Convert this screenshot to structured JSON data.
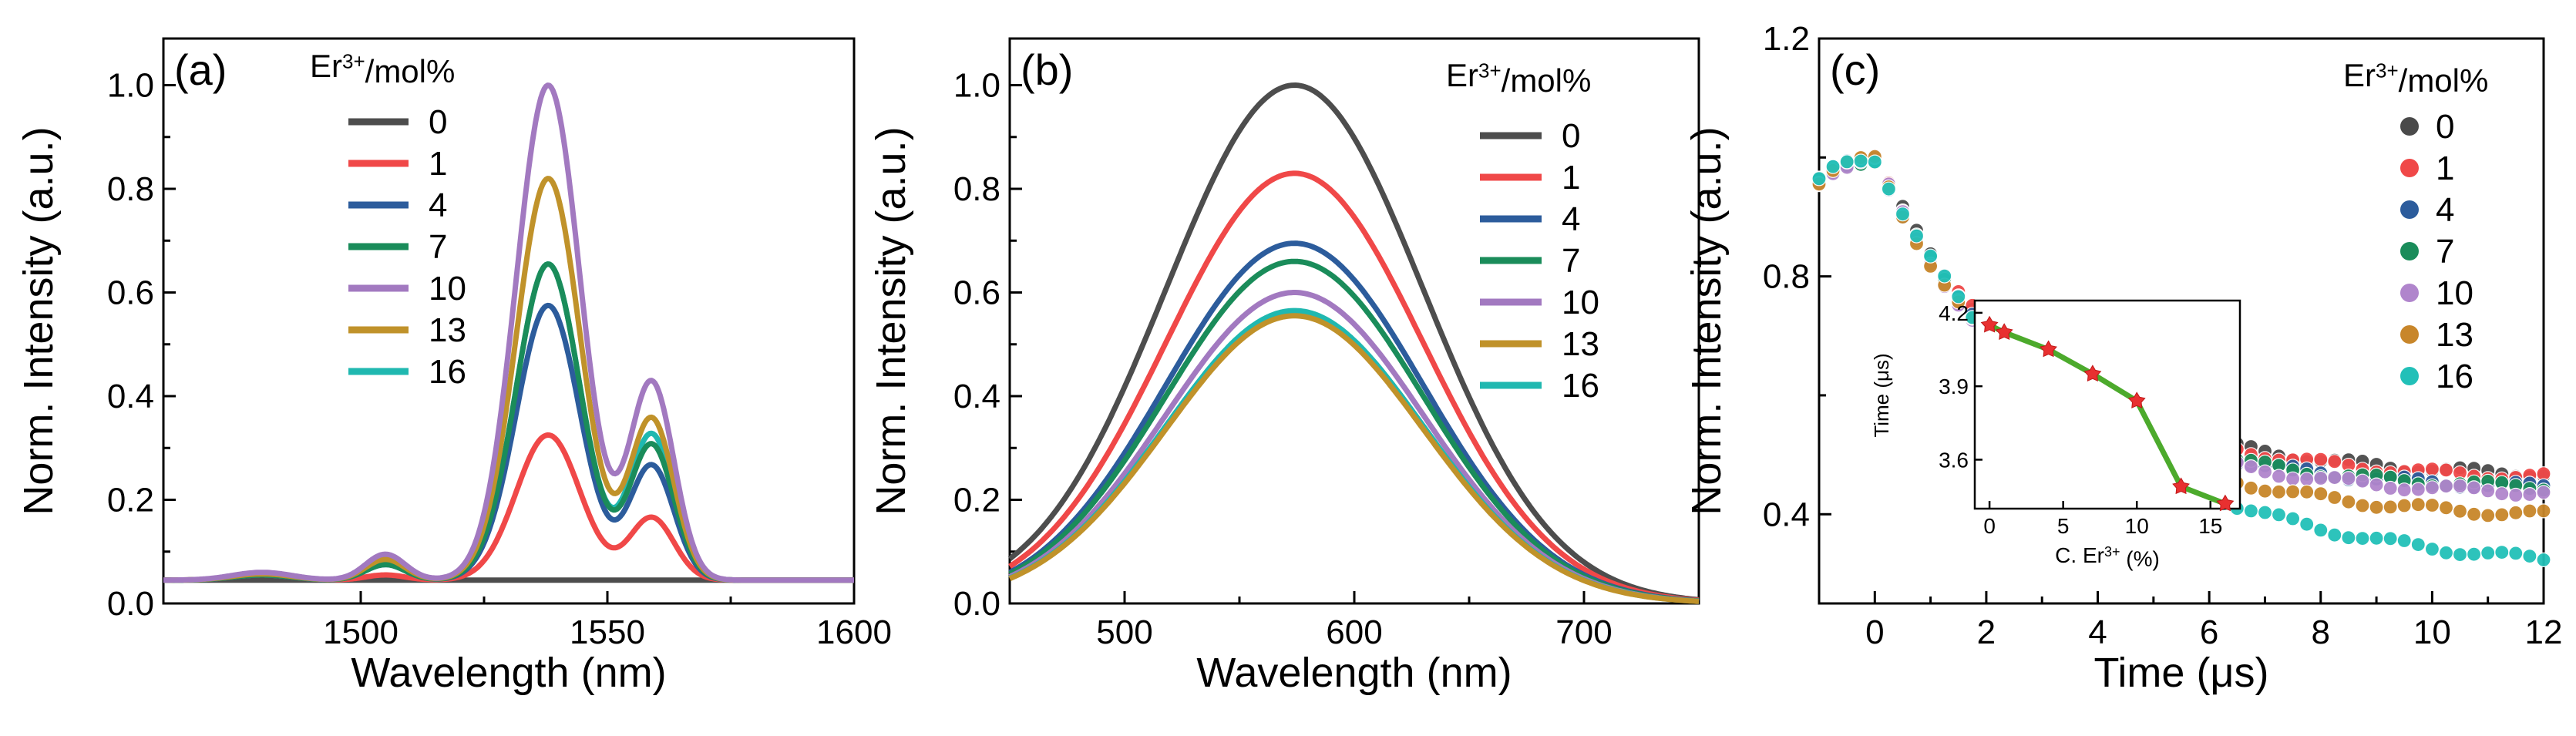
{
  "chart_data": [
    {
      "type": "line",
      "panel_label": "(a)",
      "title": "",
      "xlabel": "Wavelength (nm)",
      "ylabel": "Norm. Intensity (a.u.)",
      "xlim": [
        1460,
        1600
      ],
      "ylim": [
        0,
        1.09
      ],
      "xticks": [
        "1500",
        "1550",
        "1600"
      ],
      "yticks": [
        "0.0",
        "0.2",
        "0.4",
        "0.6",
        "0.8",
        "1.0"
      ],
      "legend_title_base": "Er",
      "legend_title_sup": "3+",
      "legend_title_tail": "/mol%",
      "legend_placement": "top-center",
      "grid": false,
      "series": [
        {
          "name": "0",
          "color": "#4d4d4d",
          "baseline": 0.045,
          "peaks": [
            [
              1538,
              0,
              8
            ],
            [
              1559,
              0,
              6
            ],
            [
              1505,
              0,
              4
            ]
          ]
        },
        {
          "name": "1",
          "color": "#f04848",
          "baseline": 0.045,
          "peaks": [
            [
              1538,
              0.28,
              6.5
            ],
            [
              1559,
              0.12,
              4.5
            ],
            [
              1505,
              0.01,
              4
            ],
            [
              1480,
              0.01,
              6
            ]
          ]
        },
        {
          "name": "4",
          "color": "#2c5c9c",
          "baseline": 0.045,
          "peaks": [
            [
              1538,
              0.53,
              6.5
            ],
            [
              1559,
              0.22,
              4.5
            ],
            [
              1505,
              0.03,
              4
            ],
            [
              1480,
              0.01,
              6
            ]
          ]
        },
        {
          "name": "7",
          "color": "#1a8c5a",
          "baseline": 0.045,
          "peaks": [
            [
              1538,
              0.61,
              6.5
            ],
            [
              1559,
              0.26,
              4.5
            ],
            [
              1505,
              0.03,
              4
            ],
            [
              1480,
              0.01,
              6
            ]
          ]
        },
        {
          "name": "10",
          "color": "#a279c0",
          "baseline": 0.045,
          "peaks": [
            [
              1538,
              0.955,
              6.5
            ],
            [
              1559,
              0.38,
              4.5
            ],
            [
              1505,
              0.05,
              4
            ],
            [
              1480,
              0.015,
              6
            ]
          ]
        },
        {
          "name": "13",
          "color": "#c0922a",
          "baseline": 0.045,
          "peaks": [
            [
              1538,
              0.775,
              6.5
            ],
            [
              1559,
              0.31,
              4.5
            ],
            [
              1505,
              0.04,
              4
            ],
            [
              1480,
              0.012,
              6
            ]
          ]
        },
        {
          "name": "16",
          "color": "#20b8b0",
          "baseline": 0.045,
          "peaks": [
            [
              1538,
              0.61,
              6.5
            ],
            [
              1559,
              0.28,
              4.5
            ],
            [
              1505,
              0.03,
              4
            ],
            [
              1480,
              0.01,
              6
            ]
          ]
        }
      ]
    },
    {
      "type": "line",
      "panel_label": "(b)",
      "title": "",
      "xlabel": "Wavelength (nm)",
      "ylabel": "Norm. Intensity (a.u.)",
      "xlim": [
        450,
        750
      ],
      "ylim": [
        0,
        1.09
      ],
      "xticks": [
        "500",
        "600",
        "700"
      ],
      "yticks": [
        "0.0",
        "0.2",
        "0.4",
        "0.6",
        "0.8",
        "1.0"
      ],
      "legend_title_base": "Er",
      "legend_title_sup": "3+",
      "legend_title_tail": "/mol%",
      "legend_placement": "top-right",
      "grid": false,
      "peak_center": 574,
      "peak_sigma": 56,
      "series": [
        {
          "name": "0",
          "color": "#4d4d4d",
          "peak": 1.0
        },
        {
          "name": "1",
          "color": "#f04848",
          "peak": 0.83
        },
        {
          "name": "4",
          "color": "#2c5c9c",
          "peak": 0.695
        },
        {
          "name": "7",
          "color": "#1a8c5a",
          "peak": 0.66
        },
        {
          "name": "10",
          "color": "#a279c0",
          "peak": 0.6
        },
        {
          "name": "13",
          "color": "#c0922a",
          "peak": 0.555
        },
        {
          "name": "16",
          "color": "#20b8b0",
          "peak": 0.565
        }
      ]
    },
    {
      "type": "scatter",
      "panel_label": "(c)",
      "title": "",
      "xlabel": "Time (μs)",
      "ylabel": "Norm. Intensity (a.u.)",
      "xlim": [
        -1,
        12
      ],
      "ylim": [
        0.25,
        1.2
      ],
      "xticks": [
        "0",
        "2",
        "4",
        "6",
        "8",
        "10",
        "12"
      ],
      "yticks": [
        "0.4",
        "0.8",
        "1.2"
      ],
      "legend_title_base": "Er",
      "legend_title_sup": "3+",
      "legend_title_tail": "/mol%",
      "legend_placement": "top-right",
      "grid": false,
      "x_step": 0.25,
      "series": [
        {
          "name": "0",
          "color": "#4a4a4a",
          "plateau": 1.0,
          "floor": 0.46,
          "tau": 2.8
        },
        {
          "name": "1",
          "color": "#f04848",
          "plateau": 1.0,
          "floor": 0.455,
          "tau": 2.8
        },
        {
          "name": "4",
          "color": "#2c5c9c",
          "plateau": 1.0,
          "floor": 0.44,
          "tau": 2.7
        },
        {
          "name": "7",
          "color": "#1a8c5a",
          "plateau": 1.0,
          "floor": 0.44,
          "tau": 2.7
        },
        {
          "name": "10",
          "color": "#b085cc",
          "plateau": 1.0,
          "floor": 0.43,
          "tau": 2.7
        },
        {
          "name": "13",
          "color": "#c8862a",
          "plateau": 1.0,
          "floor": 0.39,
          "tau": 2.9
        },
        {
          "name": "16",
          "color": "#22c0b8",
          "plateau": 1.0,
          "floor": 0.3,
          "tau": 3.6
        }
      ],
      "inset": {
        "type": "line",
        "xlabel_base": "C. Er",
        "xlabel_sup": "3+",
        "xlabel_tail": " (%)",
        "ylabel": "Time (μs)",
        "xlim": [
          -1,
          17
        ],
        "ylim": [
          3.4,
          4.25
        ],
        "xticks": [
          "0",
          "5",
          "10",
          "15"
        ],
        "yticks": [
          "3.6",
          "3.9",
          "4.2"
        ],
        "line_color": "#4caa2c",
        "marker_color": "#e83030",
        "x": [
          0,
          1,
          4,
          7,
          10,
          13,
          16
        ],
        "values": [
          4.15,
          4.12,
          4.05,
          3.95,
          3.84,
          3.49,
          3.42
        ]
      }
    }
  ]
}
